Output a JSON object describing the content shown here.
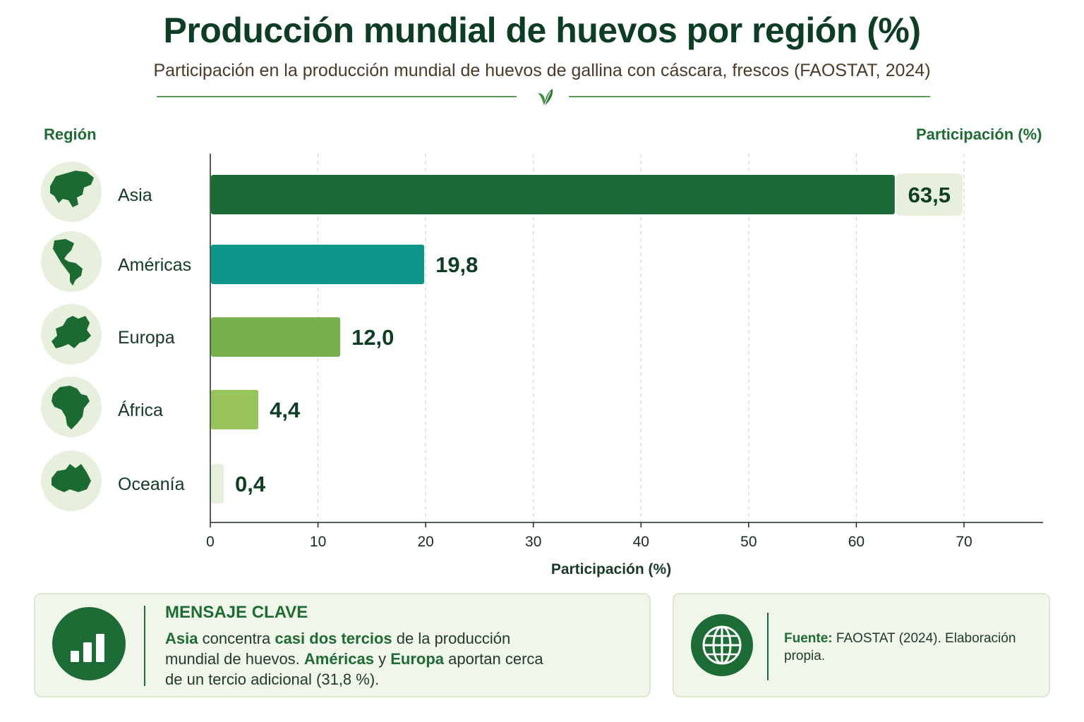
{
  "title": "Producción mundial de huevos por región (%)",
  "subtitle": "Participación en la producción mundial de huevos de gallina con cáscara, frescos (FAOSTAT, 2024)",
  "region_header": "Región",
  "value_header": "Participación (%)",
  "chart_data": {
    "type": "bar",
    "orientation": "horizontal",
    "categories": [
      "Asia",
      "Américas",
      "Europa",
      "África",
      "Oceanía"
    ],
    "values": [
      63.5,
      19.8,
      12.0,
      4.4,
      0.4
    ],
    "value_labels": [
      "63,5",
      "19,8",
      "12,0",
      "4,4",
      "0,4"
    ],
    "icons": [
      "asia-map-icon",
      "americas-map-icon",
      "europe-map-icon",
      "africa-map-icon",
      "oceania-map-icon"
    ],
    "colors": [
      "#1a6b35",
      "#0e958a",
      "#77b04e",
      "#98c45a",
      "#e7f0dc"
    ],
    "xlabel": "Participación (%)",
    "xlim": [
      0,
      77
    ],
    "xticks": [
      0,
      10,
      20,
      30,
      40,
      50,
      60,
      70
    ],
    "grid": true
  },
  "key_message": {
    "title": "MENSAJE CLAVE",
    "parts": [
      {
        "t": "Asia",
        "hl": true
      },
      {
        "t": " concentra ",
        "hl": false
      },
      {
        "t": "casi dos tercios",
        "hl": true
      },
      {
        "t": " de la producción mundial de huevos. ",
        "hl": false
      },
      {
        "t": "Américas",
        "hl": true
      },
      {
        "t": " y ",
        "hl": false
      },
      {
        "t": "Europa",
        "hl": true
      },
      {
        "t": "  aportan cerca de un tercio adicional (31,8 %).",
        "hl": false
      }
    ],
    "icon": "bar-chart-icon"
  },
  "source": {
    "label": "Fuente:",
    "text": " FAOSTAT (2024). Elaboración propia.",
    "icon": "globe-icon"
  }
}
